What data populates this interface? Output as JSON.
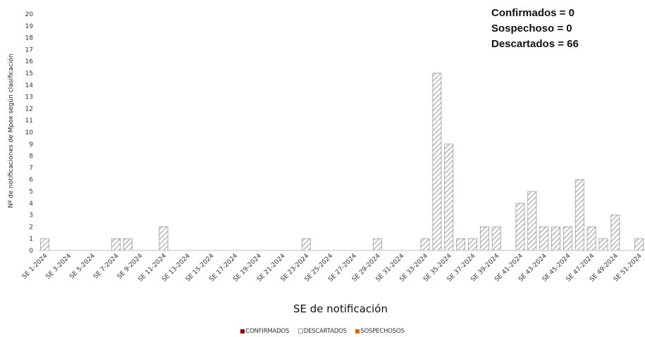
{
  "summary": {
    "confirmed_text": "Confirmados = 0",
    "suspected_text": "Sospechoso = 0",
    "discarded_text": "Descartados = 66"
  },
  "legend": [
    {
      "label": "CONFIRMADOS",
      "color": "#8b0000",
      "style": "filled"
    },
    {
      "label": "DESCARTADOS",
      "color": "#ffffff",
      "style": "outlined"
    },
    {
      "label": "SOSPECHOSOS",
      "color": "#d9660b",
      "style": "filled"
    }
  ],
  "chart_data": {
    "type": "bar",
    "stacked": true,
    "xlabel": "SE de notificación",
    "ylabel": "Nº de notificaciones de Mpox según clasificación",
    "ylim": [
      0,
      20
    ],
    "yticks": [
      0,
      1,
      2,
      3,
      4,
      5,
      6,
      7,
      8,
      9,
      10,
      11,
      12,
      13,
      14,
      15,
      16,
      17,
      18,
      19,
      20
    ],
    "grid": false,
    "legend_position": "bottom",
    "categories": [
      "SE 1-2024",
      "SE 2-2024",
      "SE 3-2024",
      "SE 4-2024",
      "SE 5-2024",
      "SE 6-2024",
      "SE 7-2024",
      "SE 8-2024",
      "SE 9-2024",
      "SE 10-2024",
      "SE 11-2024",
      "SE 12-2024",
      "SE 13-2024",
      "SE 14-2024",
      "SE 15-2024",
      "SE 16-2024",
      "SE 17-2024",
      "SE 18-2024",
      "SE 19-2024",
      "SE 20-2024",
      "SE 21-2024",
      "SE 22-2024",
      "SE 23-2024",
      "SE 24-2024",
      "SE 25-2024",
      "SE 26-2024",
      "SE 27-2024",
      "SE 28-2024",
      "SE 29-2024",
      "SE 30-2024",
      "SE 31-2024",
      "SE 32-2024",
      "SE 33-2024",
      "SE 34-2024",
      "SE 35-2024",
      "SE 36-2024",
      "SE 37-2024",
      "SE 38-2024",
      "SE 39-2024",
      "SE 40-2024",
      "SE 41-2024",
      "SE 42-2024",
      "SE 43-2024",
      "SE 44-2024",
      "SE 45-2024",
      "SE 46-2024",
      "SE 47-2024",
      "SE 48-2024",
      "SE 49-2024",
      "SE 50-2024",
      "SE 51-2024"
    ],
    "tick_labels": [
      "SE 1-2024",
      "SE 3-2024",
      "SE 5-2024",
      "SE 7-2024",
      "SE 9-2024",
      "SE 11-2024",
      "SE 13-2024",
      "SE 15-2024",
      "SE 17-2024",
      "SE 19-2024",
      "SE 21-2024",
      "SE 23-2024",
      "SE 25-2024",
      "SE 27-2024",
      "SE 29-2024",
      "SE 31-2024",
      "SE 33-2024",
      "SE 35-2024",
      "SE 37-2024",
      "SE 39-2024",
      "SE 41-2024",
      "SE 43-2024",
      "SE 45-2024",
      "SE 47-2024",
      "SE 49-2024",
      "SE 51-2024"
    ],
    "series": [
      {
        "name": "CONFIRMADOS",
        "color": "#8b0000",
        "values": [
          0,
          0,
          0,
          0,
          0,
          0,
          0,
          0,
          0,
          0,
          0,
          0,
          0,
          0,
          0,
          0,
          0,
          0,
          0,
          0,
          0,
          0,
          0,
          0,
          0,
          0,
          0,
          0,
          0,
          0,
          0,
          0,
          0,
          0,
          0,
          0,
          0,
          0,
          0,
          0,
          0,
          0,
          0,
          0,
          0,
          0,
          0,
          0,
          0,
          0,
          0
        ]
      },
      {
        "name": "DESCARTADOS",
        "color": "#ffffff",
        "pattern": "diagonal-hatch",
        "values": [
          1,
          0,
          0,
          0,
          0,
          0,
          1,
          1,
          0,
          0,
          2,
          0,
          0,
          0,
          0,
          0,
          0,
          0,
          0,
          0,
          0,
          0,
          1,
          0,
          0,
          0,
          0,
          0,
          1,
          0,
          0,
          0,
          1,
          15,
          9,
          1,
          1,
          2,
          2,
          0,
          4,
          5,
          2,
          2,
          2,
          6,
          2,
          1,
          3,
          0,
          1
        ]
      },
      {
        "name": "SOSPECHOSOS",
        "color": "#d9660b",
        "values": [
          0,
          0,
          0,
          0,
          0,
          0,
          0,
          0,
          0,
          0,
          0,
          0,
          0,
          0,
          0,
          0,
          0,
          0,
          0,
          0,
          0,
          0,
          0,
          0,
          0,
          0,
          0,
          0,
          0,
          0,
          0,
          0,
          0,
          0,
          0,
          0,
          0,
          0,
          0,
          0,
          0,
          0,
          0,
          0,
          0,
          0,
          0,
          0,
          0,
          0,
          0
        ]
      }
    ]
  }
}
